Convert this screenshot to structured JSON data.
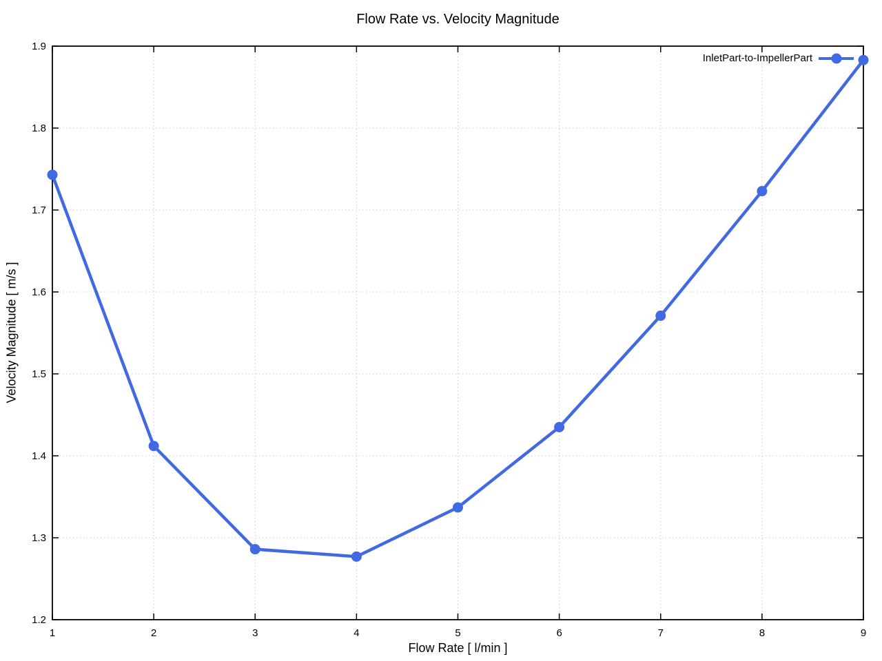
{
  "page": {
    "background_color": "#ffffff",
    "text_color": "#000000"
  },
  "chart_data": {
    "type": "line",
    "title": "Flow Rate vs. Velocity Magnitude",
    "xlabel": "Flow Rate [ l/min ]",
    "ylabel": "Velocity Magnitude [ m/s ]",
    "x": [
      1,
      2,
      3,
      4,
      5,
      6,
      7,
      8,
      9
    ],
    "series": [
      {
        "name": "InletPart-to-ImpellerPart",
        "values": [
          1.743,
          1.412,
          1.286,
          1.277,
          1.337,
          1.435,
          1.571,
          1.723,
          1.883
        ],
        "color": "#4169e1",
        "marker": "filled-circle",
        "line_width": 4.5,
        "marker_radius": 7.5
      }
    ],
    "xlim": [
      1,
      9
    ],
    "ylim": [
      1.2,
      1.9
    ],
    "xticks": [
      1,
      2,
      3,
      4,
      5,
      6,
      7,
      8,
      9
    ],
    "xtick_labels": [
      "1",
      "2",
      "3",
      "4",
      "5",
      "6",
      "7",
      "8",
      "9"
    ],
    "yticks": [
      1.2,
      1.3,
      1.4,
      1.5,
      1.6,
      1.7,
      1.8,
      1.9
    ],
    "ytick_labels": [
      "1.2",
      "1.3",
      "1.4",
      "1.5",
      "1.6",
      "1.7",
      "1.8",
      "1.9"
    ],
    "grid": "dotted",
    "grid_color": "#c9c9c9",
    "axis_color": "#000000",
    "legend_position": "top-right-inside",
    "legend_style": "label-then-line-with-marker"
  }
}
